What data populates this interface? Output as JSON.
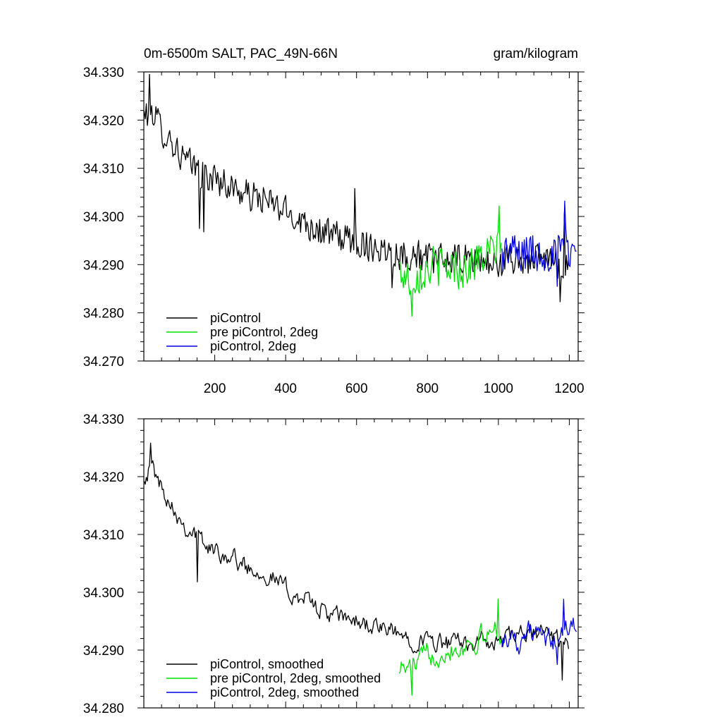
{
  "chart_data": [
    {
      "type": "line",
      "title": "0m-6500m SALT, PAC_49N-66N",
      "units": "gram/kilogram",
      "xlim": [
        0,
        1225
      ],
      "ylim": [
        34.27,
        34.33
      ],
      "xticks": [
        200,
        400,
        600,
        800,
        1000,
        1200
      ],
      "xtick_labels": [
        "200",
        "400",
        "600",
        "800",
        "1000",
        "1200"
      ],
      "yticks": [
        34.27,
        34.28,
        34.29,
        34.3,
        34.31,
        34.32,
        34.33
      ],
      "ytick_labels": [
        "34.270",
        "34.280",
        "34.290",
        "34.300",
        "34.310",
        "34.320",
        "34.330"
      ],
      "legend_position": "bottom-left",
      "series": [
        {
          "name": "piControl",
          "color": "#000000",
          "x": [
            1,
            25,
            50,
            75,
            100,
            125,
            150,
            175,
            200,
            225,
            250,
            275,
            300,
            325,
            350,
            375,
            400,
            425,
            450,
            475,
            500,
            525,
            550,
            575,
            600,
            625,
            650,
            675,
            700,
            725,
            750,
            775,
            800,
            825,
            850,
            875,
            900,
            925,
            950,
            975,
            1000,
            1025,
            1050,
            1075,
            1100,
            1125,
            1150,
            1175,
            1200
          ],
          "y": [
            34.321,
            34.322,
            34.318,
            34.316,
            34.313,
            34.311,
            34.31,
            34.308,
            34.308,
            34.307,
            34.306,
            34.305,
            34.304,
            34.304,
            34.303,
            34.302,
            34.301,
            34.3,
            34.299,
            34.298,
            34.297,
            34.296,
            34.296,
            34.295,
            34.295,
            34.294,
            34.294,
            34.293,
            34.293,
            34.292,
            34.292,
            34.292,
            34.291,
            34.291,
            34.291,
            34.291,
            34.291,
            34.291,
            34.291,
            34.29,
            34.29,
            34.291,
            34.291,
            34.291,
            34.291,
            34.291,
            34.291,
            34.29,
            34.29
          ],
          "noise": 0.0035,
          "spikes": [
            [
              15,
              34.3295
            ],
            [
              158,
              34.2975
            ],
            [
              170,
              34.2968
            ],
            [
              185,
              34.3055
            ],
            [
              595,
              34.3058
            ],
            [
              700,
              34.2852
            ],
            [
              1175,
              34.2823
            ],
            [
              1185,
              34.3008
            ]
          ]
        },
        {
          "name": "pre piControl, 2deg",
          "color": "#00e000",
          "x": [
            720,
            745,
            770,
            795,
            820,
            845,
            870,
            895,
            920,
            945,
            970,
            995,
            1010
          ],
          "y": [
            34.289,
            34.287,
            34.288,
            34.289,
            34.29,
            34.289,
            34.29,
            34.289,
            34.29,
            34.291,
            34.292,
            34.293,
            34.292
          ],
          "noise": 0.0045,
          "spikes": [
            [
              755,
              34.2793
            ],
            [
              1002,
              34.3022
            ]
          ]
        },
        {
          "name": "piControl, 2deg",
          "color": "#0000e6",
          "x": [
            1010,
            1035,
            1060,
            1085,
            1110,
            1135,
            1160,
            1185,
            1210,
            1222
          ],
          "y": [
            34.292,
            34.293,
            34.292,
            34.293,
            34.292,
            34.293,
            34.292,
            34.294,
            34.293,
            34.294
          ],
          "noise": 0.0045,
          "spikes": [
            [
              1186,
              34.3032
            ],
            [
              1165,
              34.2855
            ]
          ]
        }
      ]
    },
    {
      "type": "line",
      "title": "",
      "xlim": [
        0,
        1225
      ],
      "ylim": [
        34.28,
        34.33
      ],
      "xticks": [
        200,
        400,
        600,
        800,
        1000,
        1200
      ],
      "xtick_labels": [],
      "yticks": [
        34.28,
        34.29,
        34.3,
        34.31,
        34.32,
        34.33
      ],
      "ytick_labels": [
        "34.280",
        "34.290",
        "34.300",
        "34.310",
        "34.320",
        "34.330"
      ],
      "legend_position": "bottom-left",
      "series": [
        {
          "name": "piControl, smoothed",
          "color": "#000000",
          "x": [
            1,
            25,
            50,
            75,
            100,
            125,
            150,
            175,
            200,
            225,
            250,
            275,
            300,
            325,
            350,
            375,
            400,
            425,
            450,
            475,
            500,
            525,
            550,
            575,
            600,
            625,
            650,
            675,
            700,
            725,
            750,
            775,
            800,
            825,
            850,
            875,
            900,
            925,
            950,
            975,
            1000,
            1025,
            1050,
            1075,
            1100,
            1125,
            1150,
            1175,
            1200
          ],
          "y": [
            34.3205,
            34.3215,
            34.318,
            34.316,
            34.313,
            34.311,
            34.31,
            34.308,
            34.307,
            34.307,
            34.306,
            34.305,
            34.304,
            34.304,
            34.303,
            34.302,
            34.3005,
            34.2995,
            34.299,
            34.298,
            34.297,
            34.296,
            34.2955,
            34.2955,
            34.295,
            34.2945,
            34.294,
            34.2935,
            34.293,
            34.2925,
            34.292,
            34.292,
            34.2915,
            34.2915,
            34.291,
            34.291,
            34.2915,
            34.2915,
            34.2915,
            34.291,
            34.291,
            34.292,
            34.2925,
            34.2925,
            34.293,
            34.293,
            34.2925,
            34.2915,
            34.2915
          ],
          "noise": 0.0018,
          "spikes": [
            [
              20,
              34.3258
            ],
            [
              150,
              34.3018
            ],
            [
              1180,
              34.2848
            ],
            [
              1198,
              34.2902
            ]
          ]
        },
        {
          "name": "pre piControl, 2deg, smoothed",
          "color": "#00e000",
          "x": [
            720,
            745,
            770,
            795,
            820,
            845,
            870,
            895,
            920,
            945,
            970,
            995,
            1010
          ],
          "y": [
            34.2875,
            34.2865,
            34.2875,
            34.289,
            34.2895,
            34.29,
            34.2905,
            34.2905,
            34.2915,
            34.292,
            34.2925,
            34.294,
            34.293
          ],
          "noise": 0.0022,
          "spikes": [
            [
              755,
              34.2822
            ],
            [
              1000,
              34.2988
            ]
          ]
        },
        {
          "name": "piControl, 2deg, smoothed",
          "color": "#0000e6",
          "x": [
            1010,
            1035,
            1060,
            1085,
            1110,
            1135,
            1160,
            1185,
            1210,
            1222
          ],
          "y": [
            34.292,
            34.2925,
            34.2915,
            34.293,
            34.2925,
            34.2915,
            34.2915,
            34.293,
            34.294,
            34.2955
          ],
          "noise": 0.0022,
          "spikes": [
            [
              1185,
              34.2988
            ],
            [
              1165,
              34.2875
            ]
          ]
        }
      ]
    }
  ]
}
